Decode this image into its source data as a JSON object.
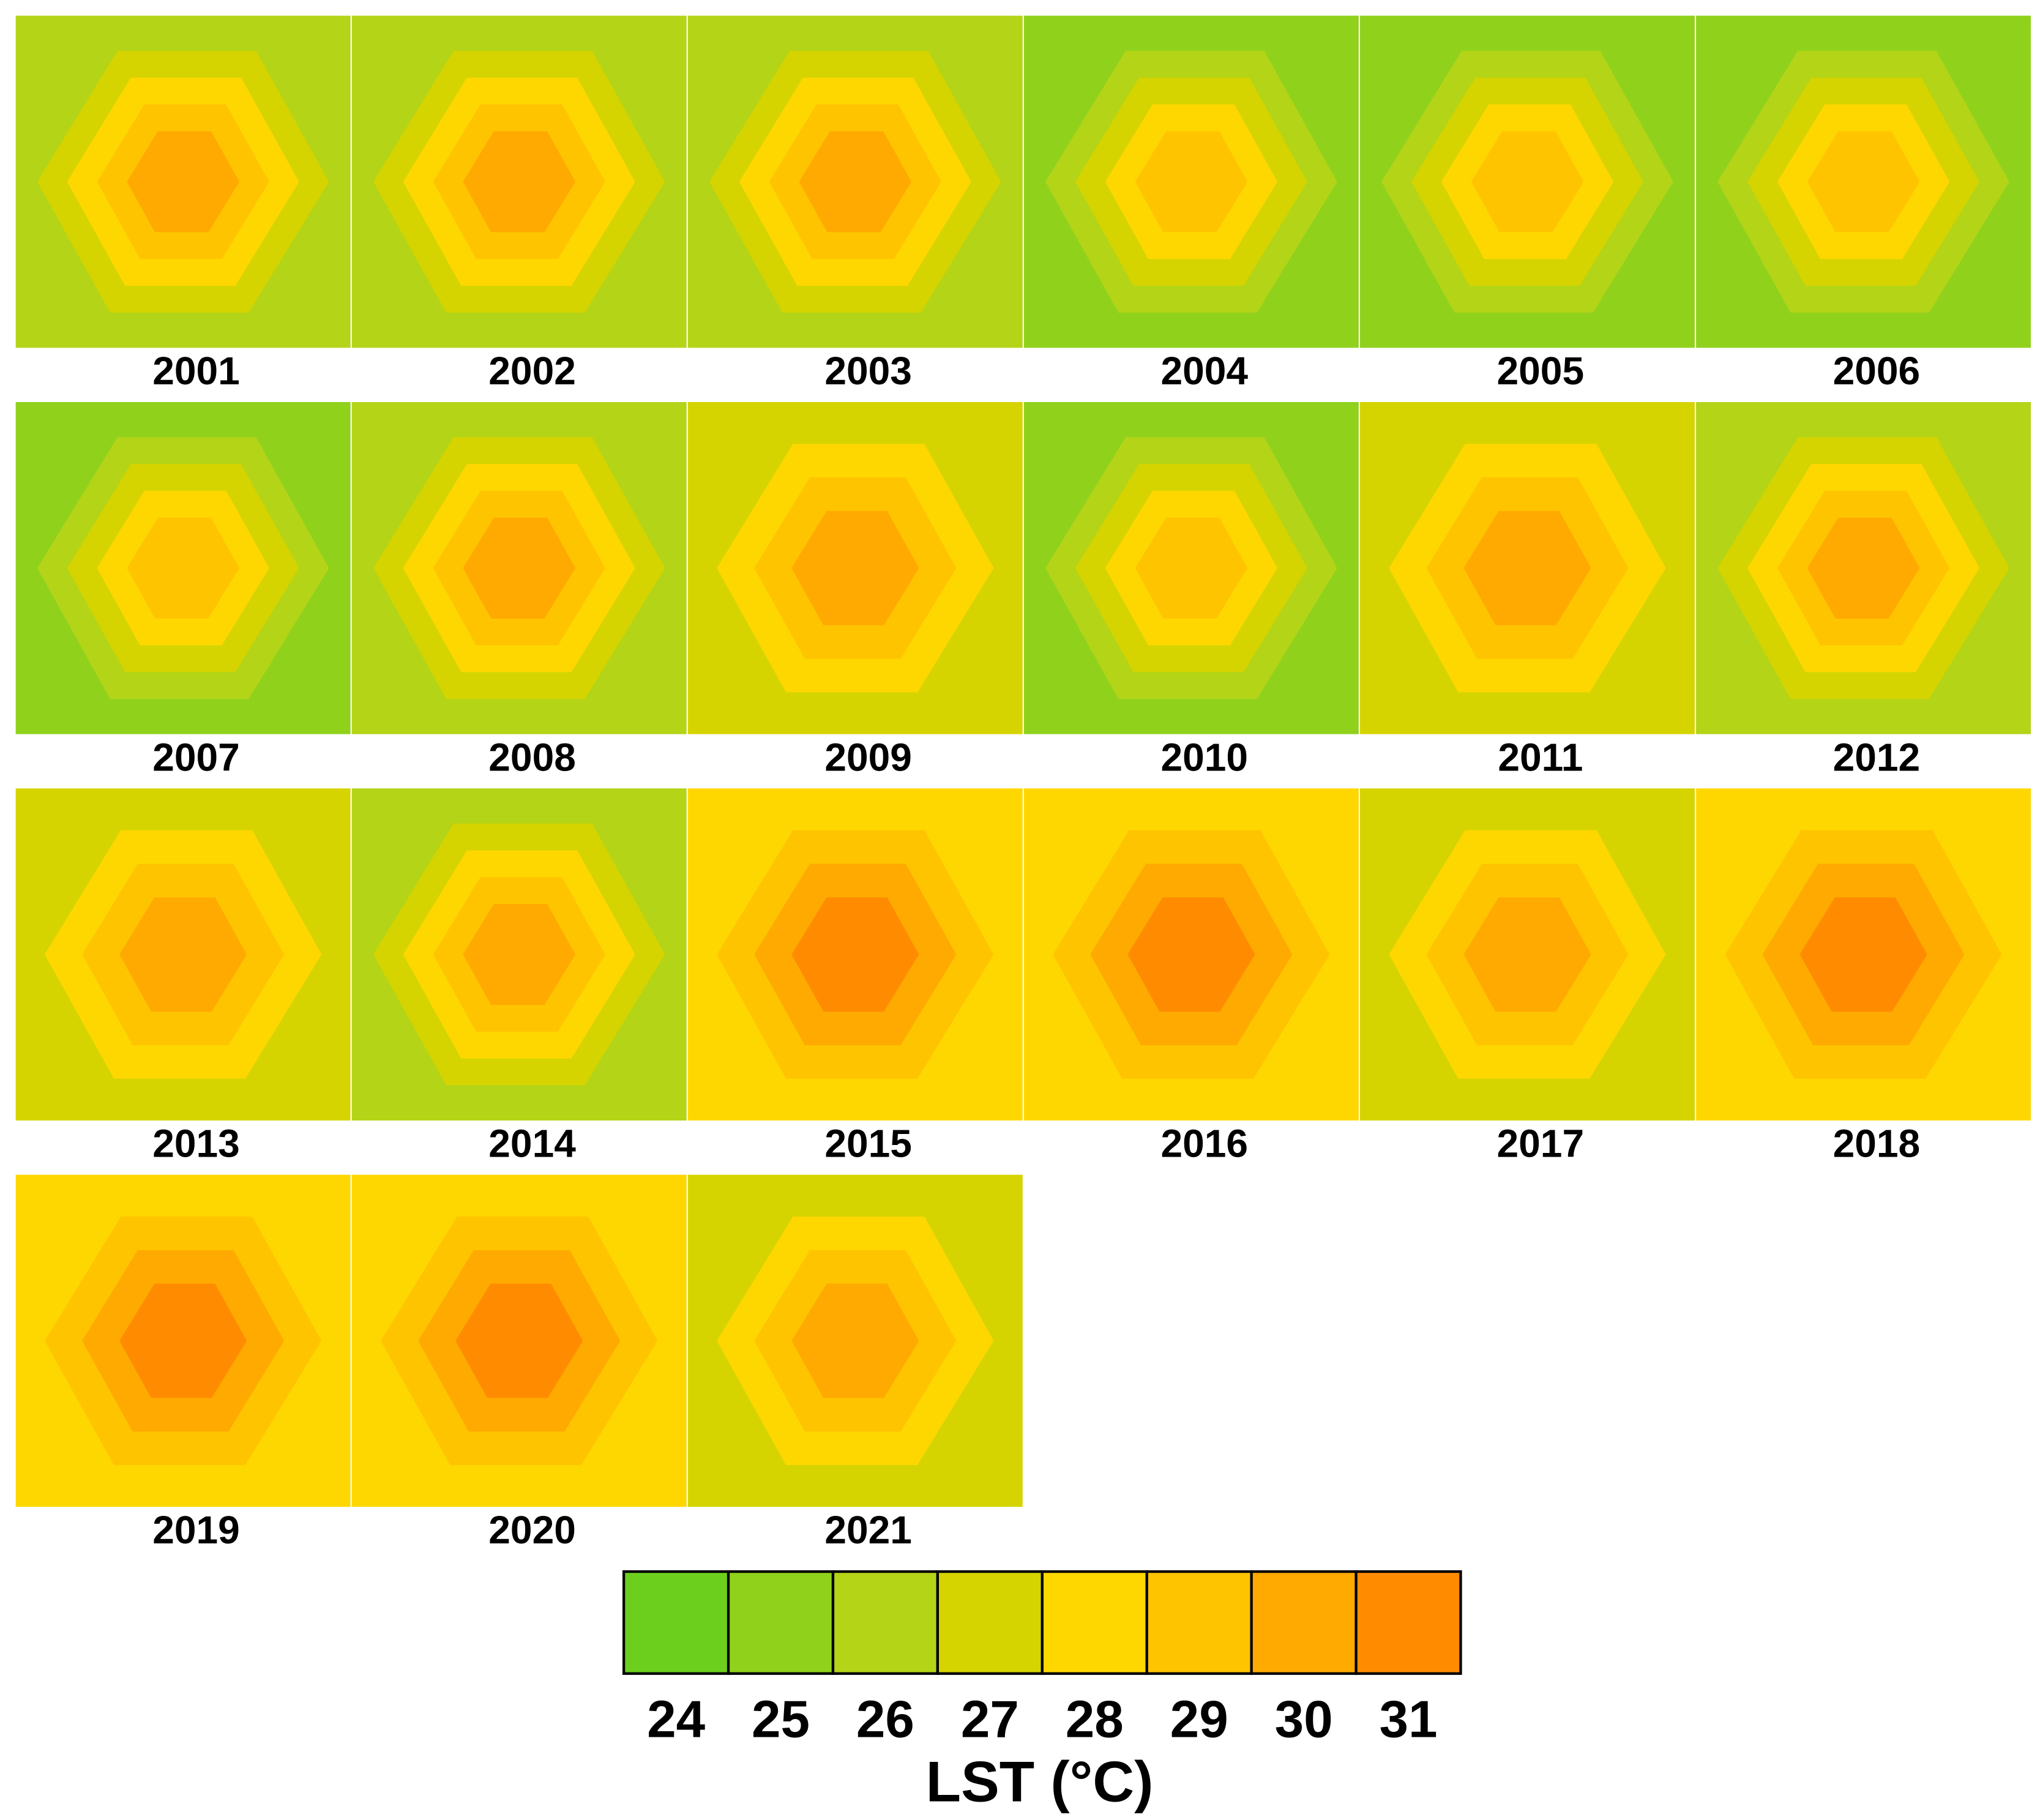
{
  "chart_data": {
    "type": "raster-panels",
    "panels": [
      {
        "year": "2001",
        "levels": [
          26,
          27,
          28,
          29,
          30
        ]
      },
      {
        "year": "2002",
        "levels": [
          26,
          27,
          28,
          29,
          30
        ]
      },
      {
        "year": "2003",
        "levels": [
          26,
          27,
          28,
          29,
          30
        ]
      },
      {
        "year": "2004",
        "levels": [
          25,
          26,
          27,
          28,
          29
        ]
      },
      {
        "year": "2005",
        "levels": [
          25,
          26,
          27,
          28,
          29
        ]
      },
      {
        "year": "2006",
        "levels": [
          25,
          26,
          27,
          28,
          29
        ]
      },
      {
        "year": "2007",
        "levels": [
          25,
          26,
          27,
          28,
          29
        ]
      },
      {
        "year": "2008",
        "levels": [
          26,
          27,
          28,
          29,
          30
        ]
      },
      {
        "year": "2009",
        "levels": [
          27,
          28,
          29,
          30
        ]
      },
      {
        "year": "2010",
        "levels": [
          25,
          26,
          27,
          28,
          29
        ]
      },
      {
        "year": "2011",
        "levels": [
          27,
          28,
          29,
          30
        ]
      },
      {
        "year": "2012",
        "levels": [
          26,
          27,
          28,
          29,
          30
        ]
      },
      {
        "year": "2013",
        "levels": [
          27,
          28,
          29,
          30
        ]
      },
      {
        "year": "2014",
        "levels": [
          26,
          27,
          28,
          29,
          30
        ]
      },
      {
        "year": "2015",
        "levels": [
          28,
          29,
          30,
          31
        ]
      },
      {
        "year": "2016",
        "levels": [
          28,
          29,
          30,
          31
        ]
      },
      {
        "year": "2017",
        "levels": [
          27,
          28,
          29,
          30
        ]
      },
      {
        "year": "2018",
        "levels": [
          28,
          29,
          30,
          31
        ]
      },
      {
        "year": "2019",
        "levels": [
          28,
          29,
          30,
          31
        ]
      },
      {
        "year": "2020",
        "levels": [
          28,
          29,
          30,
          31
        ]
      },
      {
        "year": "2021",
        "levels": [
          27,
          28,
          29,
          30
        ]
      }
    ],
    "colorbar": {
      "title": "LST (°C)",
      "values": [
        24,
        25,
        26,
        27,
        28,
        29,
        30,
        31
      ],
      "colors": [
        "#6dcf1d",
        "#90d11c",
        "#b3d417",
        "#d5d400",
        "#ffd700",
        "#ffc400",
        "#ffaa00",
        "#ff8c00"
      ]
    }
  }
}
